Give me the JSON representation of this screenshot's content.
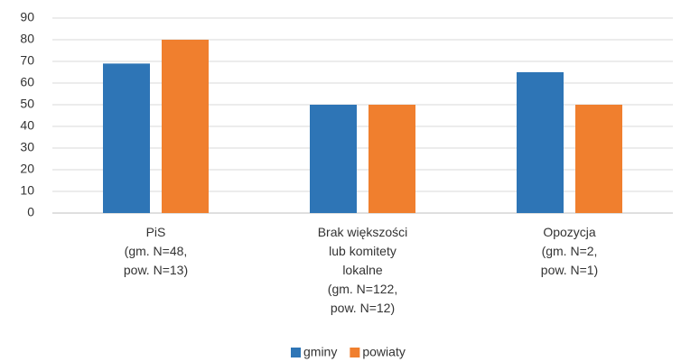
{
  "chart_data": {
    "type": "bar",
    "categories": [
      [
        "PiS",
        "(gm. N=48,",
        "pow. N=13)"
      ],
      [
        "Brak większości",
        "lub komitety",
        "lokalne",
        "(gm. N=122,",
        "pow. N=12)"
      ],
      [
        "Opozycja",
        "(gm. N=2,",
        "pow. N=1)"
      ]
    ],
    "series": [
      {
        "name": "gminy",
        "color": "#2e75b6",
        "values": [
          69,
          50,
          65
        ]
      },
      {
        "name": "powiaty",
        "color": "#f07f2e",
        "values": [
          80,
          50,
          50
        ]
      }
    ],
    "ylim": [
      0,
      90
    ],
    "yticks": [
      0,
      10,
      20,
      30,
      40,
      50,
      60,
      70,
      80,
      90
    ],
    "grid": true,
    "legend": "bottom"
  }
}
